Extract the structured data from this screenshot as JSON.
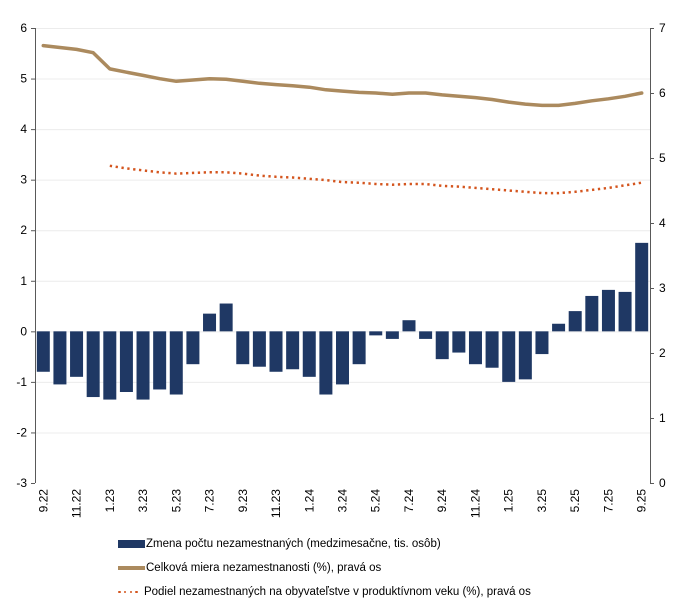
{
  "chart_data": {
    "type": "combo",
    "title": "",
    "categories": [
      "9.22",
      "10.22",
      "11.22",
      "12.22",
      "1.23",
      "2.23",
      "3.23",
      "4.23",
      "5.23",
      "6.23",
      "7.23",
      "8.23",
      "9.23",
      "10.23",
      "11.23",
      "12.23",
      "1.24",
      "2.24",
      "3.24",
      "4.24",
      "5.24",
      "6.24",
      "7.24",
      "8.24",
      "9.24",
      "10.24",
      "11.24",
      "12.24",
      "1.25",
      "2.25",
      "3.25",
      "4.25",
      "5.25",
      "6.25",
      "7.25",
      "8.25",
      "9.25"
    ],
    "x_tick_every": 2,
    "series": [
      {
        "name": "Zmena počtu nezamestnaných (medzimesačne, tis. osôb)",
        "type": "bar",
        "axis": "left",
        "color": "#1F3864",
        "values": [
          -0.8,
          -1.05,
          -0.9,
          -1.3,
          -1.35,
          -1.2,
          -1.35,
          -1.15,
          -1.25,
          -0.65,
          0.35,
          0.55,
          -0.65,
          -0.7,
          -0.8,
          -0.75,
          -0.9,
          -1.25,
          -1.05,
          -0.65,
          -0.08,
          -0.15,
          0.22,
          -0.15,
          -0.55,
          -0.42,
          -0.65,
          -0.72,
          -1.0,
          -0.95,
          -0.45,
          0.15,
          0.4,
          0.7,
          0.82,
          0.78,
          1.75
        ]
      },
      {
        "name": "Celková miera nezamestnanosti (%), pravá os",
        "type": "line",
        "style": "solid",
        "axis": "right",
        "color": "#AB8A5E",
        "values": [
          6.73,
          6.7,
          6.67,
          6.62,
          6.37,
          6.32,
          6.27,
          6.22,
          6.18,
          6.2,
          6.22,
          6.21,
          6.18,
          6.15,
          6.13,
          6.11,
          6.09,
          6.05,
          6.03,
          6.01,
          6.0,
          5.98,
          6.0,
          6.0,
          5.97,
          5.95,
          5.93,
          5.9,
          5.86,
          5.83,
          5.81,
          5.81,
          5.84,
          5.88,
          5.91,
          5.95,
          6.0
        ]
      },
      {
        "name": "Podiel nezamestnaných na obyvateľstve v produktívnom veku (%), pravá os",
        "type": "line",
        "style": "dotted",
        "axis": "right",
        "color": "#D4551E",
        "values": [
          null,
          null,
          null,
          null,
          4.88,
          4.84,
          4.81,
          4.78,
          4.76,
          4.77,
          4.78,
          4.78,
          4.76,
          4.73,
          4.71,
          4.7,
          4.68,
          4.66,
          4.63,
          4.62,
          4.6,
          4.59,
          4.6,
          4.6,
          4.57,
          4.56,
          4.54,
          4.52,
          4.5,
          4.48,
          4.46,
          4.46,
          4.48,
          4.51,
          4.54,
          4.58,
          4.62
        ]
      }
    ],
    "left_axis": {
      "min": -3,
      "max": 6,
      "tick_labels": [
        "6",
        "5",
        "4",
        "3",
        "2",
        "1",
        "0",
        "-1",
        "-2",
        "-3"
      ]
    },
    "right_axis": {
      "min": 0,
      "max": 7,
      "tick_labels": [
        "7",
        "6",
        "5",
        "4",
        "3",
        "2",
        "1",
        "0"
      ]
    },
    "grid": true,
    "legend_position": "bottom",
    "colors": {
      "gridline": "#ECECEC",
      "axis_line": "#595959",
      "tick_text": "#000000"
    }
  }
}
